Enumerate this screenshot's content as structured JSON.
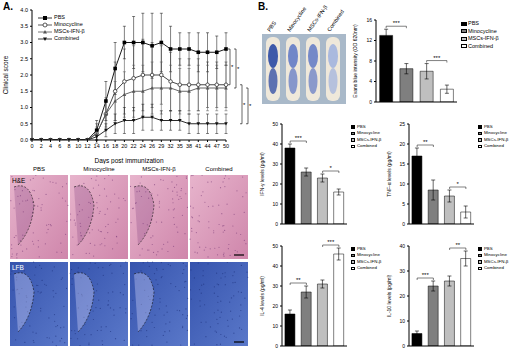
{
  "chart_data": [
    {
      "type": "line",
      "y_label": "Clinical score",
      "x_label": "Days post immunization",
      "categories": [
        "0",
        "2",
        "4",
        "6",
        "8",
        "10",
        "12",
        "14",
        "16",
        "18",
        "20",
        "22",
        "24",
        "26",
        "29",
        "32",
        "35",
        "38",
        "41",
        "44",
        "47",
        "50"
      ],
      "ylim": [
        0,
        4
      ],
      "yticks": [
        {
          "value": 0,
          "label": "0.0"
        },
        {
          "value": 0.5,
          "label": "0.5"
        },
        {
          "value": 1,
          "label": "1.0"
        },
        {
          "value": 1.5,
          "label": "1.5"
        },
        {
          "value": 2,
          "label": "2.0"
        },
        {
          "value": 2.5,
          "label": "2.5"
        },
        {
          "value": 3,
          "label": "3.0"
        },
        {
          "value": 3.5,
          "label": "3.5"
        },
        {
          "value": 4,
          "label": "4.0"
        }
      ],
      "legend": "upper left",
      "series": [
        {
          "name": "PBS",
          "color": "#000000",
          "marker": "square",
          "values": [
            0,
            0,
            0,
            0,
            0,
            0,
            0,
            0.3,
            1.2,
            2.2,
            3.0,
            3.0,
            3.0,
            2.9,
            3.0,
            2.8,
            2.8,
            2.8,
            2.7,
            2.7,
            2.7,
            2.8
          ],
          "errors": [
            0,
            0,
            0,
            0,
            0,
            0,
            0,
            0.3,
            0.6,
            0.8,
            0.5,
            0.8,
            0.9,
            1.0,
            0.9,
            0.7,
            0.5,
            0.5,
            0.6,
            0.6,
            0.5,
            0.5
          ]
        },
        {
          "name": "Minocycline",
          "color": "#333333",
          "marker": "circle",
          "values": [
            0,
            0,
            0,
            0,
            0,
            0,
            0,
            0.2,
            0.8,
            1.5,
            1.8,
            1.9,
            2.0,
            2.0,
            2.0,
            1.8,
            1.7,
            1.7,
            1.7,
            1.7,
            1.7,
            1.7
          ],
          "errors": [
            0,
            0,
            0,
            0,
            0,
            0,
            0,
            0.3,
            0.5,
            0.9,
            1.0,
            1.0,
            1.1,
            1.0,
            0.9,
            0.9,
            0.8,
            0.8,
            0.8,
            0.7,
            0.7,
            0.7
          ]
        },
        {
          "name": "MSCs-IFN-β",
          "color": "#555555",
          "marker": "triangle",
          "values": [
            0,
            0,
            0,
            0,
            0,
            0,
            0,
            0.2,
            0.8,
            1.2,
            1.4,
            1.5,
            1.5,
            1.6,
            1.6,
            1.6,
            1.5,
            1.5,
            1.6,
            1.6,
            1.6,
            1.6
          ],
          "errors": [
            0,
            0,
            0,
            0,
            0,
            0,
            0,
            0.2,
            0.4,
            0.6,
            0.7,
            0.8,
            0.8,
            0.8,
            0.8,
            0.7,
            0.7,
            0.7,
            0.7,
            0.7,
            0.7,
            0.7
          ]
        },
        {
          "name": "Combined",
          "color": "#111111",
          "marker": "triangle-down",
          "values": [
            0,
            0,
            0,
            0,
            0,
            0,
            0,
            0.1,
            0.3,
            0.5,
            0.6,
            0.6,
            0.7,
            0.7,
            0.6,
            0.6,
            0.6,
            0.5,
            0.5,
            0.5,
            0.5,
            0.5
          ],
          "errors": [
            0,
            0,
            0,
            0,
            0,
            0,
            0,
            0.1,
            0.2,
            0.3,
            0.4,
            0.4,
            0.4,
            0.4,
            0.3,
            0.3,
            0.3,
            0.3,
            0.3,
            0.3,
            0.3,
            0.3
          ]
        }
      ],
      "significance": [
        {
          "text": "*",
          "between": [
            "PBS",
            "Minocycline"
          ]
        },
        {
          "text": "*",
          "between": [
            "PBS",
            "MSCs-IFN-β"
          ]
        },
        {
          "text": "*",
          "between": [
            "Minocycline",
            "Combined"
          ]
        },
        {
          "text": "*",
          "between": [
            "MSCs-IFN-β",
            "Combined"
          ]
        }
      ]
    },
    {
      "type": "bar",
      "y_label": "Evans blue intensity (OD 620nm)",
      "categories": [
        "PBS",
        "Minocycline",
        "MSCs-IFN-β",
        "Combined"
      ],
      "colors": [
        "#000000",
        "#7f7f7f",
        "#bfbfbf",
        "#ffffff"
      ],
      "values": [
        13,
        6.5,
        6,
        2.5
      ],
      "errors": [
        1.2,
        1.0,
        1.5,
        0.8
      ],
      "ylim": [
        0,
        16
      ],
      "yticks": [
        0,
        4,
        8,
        12,
        16
      ],
      "tick_labels": "y",
      "legend": "upper right",
      "significance": [
        {
          "text": "***",
          "between": [
            "PBS",
            "Minocycline"
          ]
        },
        {
          "text": "***",
          "between": [
            "MSCs-IFN-β",
            "Combined"
          ]
        }
      ]
    },
    {
      "type": "bar",
      "y_label": "IFN-γ levels (pg/ml)",
      "categories": [
        "PBS",
        "Minocycline",
        "MSCs-IFN-β",
        "Combined"
      ],
      "colors": [
        "#000000",
        "#7f7f7f",
        "#bfbfbf",
        "#ffffff"
      ],
      "values": [
        38,
        26,
        23,
        16
      ],
      "errors": [
        2,
        2,
        2,
        1.5
      ],
      "ylim": [
        0,
        50
      ],
      "yticks": [
        0,
        10,
        20,
        30,
        40,
        50
      ],
      "tick_labels": "y",
      "legend": "upper right",
      "significance": [
        {
          "text": "***",
          "between": [
            "PBS",
            "Minocycline"
          ]
        },
        {
          "text": "*",
          "between": [
            "MSCs-IFN-β",
            "Combined"
          ]
        }
      ]
    },
    {
      "type": "bar",
      "y_label": "TNF-α levels (pg/ml)",
      "categories": [
        "PBS",
        "Minocycline",
        "MSCs-IFN-β",
        "Combined"
      ],
      "colors": [
        "#000000",
        "#7f7f7f",
        "#bfbfbf",
        "#ffffff"
      ],
      "values": [
        17,
        8.5,
        7,
        3
      ],
      "errors": [
        2,
        2.5,
        1.5,
        1.5
      ],
      "ylim": [
        0,
        25
      ],
      "yticks": [
        0,
        5,
        10,
        15,
        20,
        25
      ],
      "tick_labels": "y",
      "legend": "upper right",
      "significance": [
        {
          "text": "**",
          "between": [
            "PBS",
            "Minocycline"
          ]
        },
        {
          "text": "*",
          "between": [
            "MSCs-IFN-β",
            "Combined"
          ]
        }
      ]
    },
    {
      "type": "bar",
      "y_label": "IL-4 levels (pg/ml)",
      "categories": [
        "PBS",
        "Minocycline",
        "MSCs-IFN-β",
        "Combined"
      ],
      "colors": [
        "#000000",
        "#7f7f7f",
        "#bfbfbf",
        "#ffffff"
      ],
      "values": [
        16,
        27,
        31,
        46
      ],
      "errors": [
        2,
        3,
        2,
        3
      ],
      "ylim": [
        0,
        50
      ],
      "yticks": [
        0,
        10,
        20,
        30,
        40,
        50
      ],
      "tick_labels": "y",
      "legend": "upper right",
      "significance": [
        {
          "text": "**",
          "between": [
            "PBS",
            "Minocycline"
          ]
        },
        {
          "text": "***",
          "between": [
            "MSCs-IFN-β",
            "Combined"
          ]
        }
      ]
    },
    {
      "type": "bar",
      "y_label": "IL-10 levels (pg/ml)",
      "categories": [
        "PBS",
        "Minocycline",
        "MSCs-IFN-β",
        "Combined"
      ],
      "colors": [
        "#000000",
        "#7f7f7f",
        "#bfbfbf",
        "#ffffff"
      ],
      "values": [
        5,
        24,
        26,
        35
      ],
      "errors": [
        1,
        2,
        2,
        3
      ],
      "ylim": [
        0,
        40
      ],
      "yticks": [
        0,
        10,
        20,
        30,
        40
      ],
      "tick_labels": "y",
      "legend": "upper right",
      "significance": [
        {
          "text": "***",
          "between": [
            "PBS",
            "Minocycline"
          ]
        },
        {
          "text": "**",
          "between": [
            "MSCs-IFN-β",
            "Combined"
          ]
        }
      ]
    }
  ],
  "figure": {
    "panel_labels": [
      "A.",
      "B."
    ],
    "histology": {
      "columns": [
        "PBS",
        "Minocycline",
        "MSCs-IFN-β",
        "Combined"
      ],
      "rows": [
        "H&E",
        "LFB"
      ]
    },
    "spinal_cord": {
      "labels": [
        "PBS",
        "Minocycline",
        "MSCs-IFN-β",
        "Combined"
      ]
    }
  }
}
